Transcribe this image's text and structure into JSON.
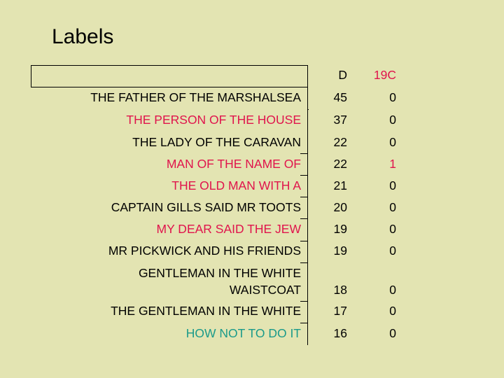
{
  "title": "Labels",
  "table": {
    "headers": {
      "label": "",
      "d": "D",
      "c19": "19C"
    },
    "colors": {
      "black": "#000000",
      "red": "#e0144c",
      "teal": "#1a9a8a"
    },
    "rows": [
      {
        "label": "THE FATHER OF THE MARSHALSEA",
        "d": "45",
        "c19": "0",
        "label_color": "#000000",
        "c19_color": "#000000"
      },
      {
        "label": "THE PERSON OF THE HOUSE",
        "d": "37",
        "c19": "0",
        "label_color": "#e0144c",
        "c19_color": "#000000"
      },
      {
        "label": "THE LADY OF THE CARAVAN",
        "d": "22",
        "c19": "0",
        "label_color": "#000000",
        "c19_color": "#000000"
      },
      {
        "label": "MAN OF THE NAME OF",
        "d": "22",
        "c19": "1",
        "label_color": "#e0144c",
        "c19_color": "#e0144c"
      },
      {
        "label": "THE OLD MAN WITH A",
        "d": "21",
        "c19": "0",
        "label_color": "#e0144c",
        "c19_color": "#000000"
      },
      {
        "label": "CAPTAIN GILLS SAID MR TOOTS",
        "d": "20",
        "c19": "0",
        "label_color": "#000000",
        "c19_color": "#000000"
      },
      {
        "label": "MY DEAR SAID THE JEW",
        "d": "19",
        "c19": "0",
        "label_color": "#e0144c",
        "c19_color": "#000000"
      },
      {
        "label": "MR PICKWICK AND HIS FRIENDS",
        "d": "19",
        "c19": "0",
        "label_color": "#000000",
        "c19_color": "#000000"
      },
      {
        "label_lines": [
          "GENTLEMAN IN THE WHITE",
          "WAISTCOAT"
        ],
        "d": "18",
        "c19": "0",
        "label_color": "#000000",
        "c19_color": "#000000"
      },
      {
        "label": "THE GENTLEMAN IN THE WHITE",
        "d": "17",
        "c19": "0",
        "label_color": "#000000",
        "c19_color": "#000000"
      },
      {
        "label": "HOW NOT TO DO IT",
        "d": "16",
        "c19": "0",
        "label_color": "#1a9a8a",
        "c19_color": "#000000"
      }
    ]
  }
}
